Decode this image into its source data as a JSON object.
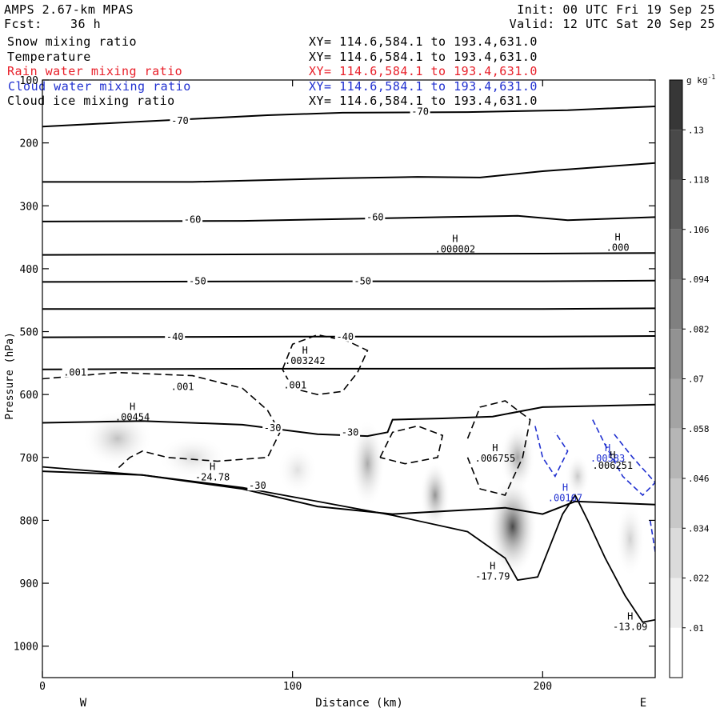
{
  "header": {
    "model": "AMPS 2.67-km MPAS",
    "init": "Init: 00 UTC Fri 19 Sep 25",
    "fcst_label": "Fcst:",
    "fcst_value": "36 h",
    "valid": "Valid: 12 UTC Sat 20 Sep 25"
  },
  "fields": [
    {
      "name": "Snow mixing ratio",
      "xy": "XY= 114.6,584.1 to 193.4,631.0",
      "color": "#000000"
    },
    {
      "name": "Temperature",
      "xy": "XY= 114.6,584.1 to 193.4,631.0",
      "color": "#000000"
    },
    {
      "name": "Rain water mixing ratio",
      "xy": "XY= 114.6,584.1 to 193.4,631.0",
      "color": "#e8202a"
    },
    {
      "name": "Cloud water mixing ratio",
      "xy": "XY= 114.6,584.1 to 193.4,631.0",
      "color": "#2030d0"
    },
    {
      "name": "Cloud ice mixing ratio",
      "xy": "XY= 114.6,584.1 to 193.4,631.0",
      "color": "#000000"
    }
  ],
  "chart_data": {
    "type": "cross-section",
    "xlabel": "Distance (km)",
    "ylabel": "Pressure (hPa)",
    "xlim": [
      0,
      245
    ],
    "ylim": [
      1050,
      100
    ],
    "xticks": [
      0,
      100,
      200
    ],
    "yticks": [
      100,
      200,
      300,
      400,
      500,
      600,
      700,
      800,
      900,
      1000
    ],
    "west_label": "W",
    "east_label": "E",
    "colorbar": {
      "unit": "g kg",
      "unit_exp": "-1",
      "levels": [
        ".01",
        ".022",
        ".034",
        ".046",
        ".058",
        ".07",
        ".082",
        ".094",
        ".106",
        ".118",
        ".13"
      ]
    },
    "temperature_contours": [
      {
        "label": "-70",
        "points": [
          [
            0,
            174
          ],
          [
            40,
            166
          ],
          [
            90,
            156
          ],
          [
            120,
            152
          ],
          [
            170,
            151
          ],
          [
            210,
            148
          ],
          [
            245,
            142
          ]
        ]
      },
      {
        "label": "",
        "points": [
          [
            0,
            262
          ],
          [
            60,
            262
          ],
          [
            120,
            256
          ],
          [
            150,
            254
          ],
          [
            175,
            255
          ],
          [
            200,
            245
          ],
          [
            245,
            232
          ]
        ]
      },
      {
        "label": "-60",
        "points": [
          [
            0,
            325
          ],
          [
            80,
            324
          ],
          [
            120,
            321
          ],
          [
            160,
            318
          ],
          [
            190,
            316
          ],
          [
            210,
            323
          ],
          [
            245,
            318
          ]
        ]
      },
      {
        "label": "",
        "points": [
          [
            0,
            378
          ],
          [
            100,
            377
          ],
          [
            200,
            376
          ],
          [
            245,
            375
          ]
        ]
      },
      {
        "label": "-50",
        "points": [
          [
            0,
            421
          ],
          [
            100,
            420
          ],
          [
            200,
            420
          ],
          [
            245,
            419
          ]
        ]
      },
      {
        "label": "",
        "points": [
          [
            0,
            464
          ],
          [
            100,
            464
          ],
          [
            200,
            464
          ],
          [
            245,
            463
          ]
        ]
      },
      {
        "label": "-40",
        "points": [
          [
            0,
            509
          ],
          [
            100,
            508
          ],
          [
            200,
            508
          ],
          [
            245,
            507
          ]
        ]
      },
      {
        "label": "",
        "points": [
          [
            0,
            560
          ],
          [
            100,
            559
          ],
          [
            200,
            559
          ],
          [
            245,
            558
          ]
        ]
      },
      {
        "label": "-30",
        "points": [
          [
            0,
            645
          ],
          [
            40,
            642
          ],
          [
            80,
            648
          ],
          [
            110,
            663
          ],
          [
            130,
            666
          ],
          [
            138,
            660
          ],
          [
            140,
            640
          ],
          [
            160,
            638
          ],
          [
            180,
            635
          ],
          [
            200,
            620
          ],
          [
            245,
            616
          ]
        ]
      },
      {
        "label": "",
        "points": [
          [
            0,
            722
          ],
          [
            40,
            728
          ],
          [
            80,
            750
          ],
          [
            110,
            778
          ],
          [
            140,
            790
          ],
          [
            185,
            780
          ],
          [
            200,
            790
          ],
          [
            213,
            770
          ],
          [
            245,
            775
          ]
        ]
      }
    ],
    "contour_labels": [
      {
        "text": "-70",
        "x": 55,
        "p": 165
      },
      {
        "text": "-70",
        "x": 151,
        "p": 150
      },
      {
        "text": "-60",
        "x": 60,
        "p": 322
      },
      {
        "text": "-60",
        "x": 133,
        "p": 318
      },
      {
        "text": "-50",
        "x": 62,
        "p": 420
      },
      {
        "text": "-50",
        "x": 128,
        "p": 420
      },
      {
        "text": "-40",
        "x": 53,
        "p": 508
      },
      {
        "text": "-40",
        "x": 121,
        "p": 508
      },
      {
        "text": "-30",
        "x": 92,
        "p": 653
      },
      {
        "text": "-30",
        "x": 123,
        "p": 660
      },
      {
        "text": "-30",
        "x": 86,
        "p": 745
      },
      {
        "text": ".001",
        "x": 13,
        "p": 565
      },
      {
        "text": ".001",
        "x": 56,
        "p": 588
      },
      {
        "text": ".001",
        "x": 101,
        "p": 585
      }
    ],
    "extrema": [
      {
        "mark": "H",
        "value": ".00454",
        "x": 36,
        "p": 635
      },
      {
        "mark": "H",
        "value": "-24.78",
        "x": 68,
        "p": 730
      },
      {
        "mark": "H",
        "value": ".003242",
        "x": 105,
        "p": 545
      },
      {
        "mark": "H",
        "value": ".000002",
        "x": 165,
        "p": 368
      },
      {
        "mark": "H",
        "value": ".000",
        "x": 230,
        "p": 365
      },
      {
        "mark": "H",
        "value": ".006755",
        "x": 181,
        "p": 700
      },
      {
        "mark": "H",
        "value": "-17.79",
        "x": 180,
        "p": 888
      },
      {
        "mark": "H",
        "value": ".00167",
        "x": 209,
        "p": 763
      },
      {
        "mark": "H",
        "value": ".00583",
        "x": 226,
        "p": 700
      },
      {
        "mark": "H",
        "value": ".006251",
        "x": 228,
        "p": 712
      },
      {
        "mark": "H",
        "value": "-13.09",
        "x": 235,
        "p": 968
      }
    ],
    "terrain": [
      [
        0,
        715
      ],
      [
        40,
        728
      ],
      [
        80,
        748
      ],
      [
        110,
        770
      ],
      [
        140,
        792
      ],
      [
        170,
        818
      ],
      [
        185,
        860
      ],
      [
        190,
        895
      ],
      [
        198,
        890
      ],
      [
        208,
        790
      ],
      [
        213,
        760
      ],
      [
        218,
        800
      ],
      [
        225,
        860
      ],
      [
        233,
        920
      ],
      [
        240,
        962
      ],
      [
        245,
        958
      ]
    ],
    "snow_contours": [
      [
        [
          0,
          575
        ],
        [
          30,
          565
        ],
        [
          60,
          570
        ],
        [
          80,
          590
        ],
        [
          90,
          625
        ],
        [
          95,
          660
        ],
        [
          90,
          700
        ],
        [
          70,
          706
        ],
        [
          50,
          700
        ],
        [
          40,
          690
        ],
        [
          35,
          700
        ],
        [
          30,
          718
        ]
      ],
      [
        [
          96,
          560
        ],
        [
          100,
          520
        ],
        [
          110,
          505
        ],
        [
          122,
          515
        ],
        [
          130,
          530
        ],
        [
          126,
          565
        ],
        [
          120,
          595
        ],
        [
          110,
          600
        ],
        [
          100,
          590
        ],
        [
          96,
          560
        ]
      ],
      [
        [
          135,
          700
        ],
        [
          140,
          660
        ],
        [
          150,
          650
        ],
        [
          160,
          665
        ],
        [
          158,
          700
        ],
        [
          145,
          710
        ],
        [
          135,
          700
        ]
      ],
      [
        [
          170,
          670
        ],
        [
          175,
          620
        ],
        [
          185,
          610
        ],
        [
          195,
          640
        ],
        [
          192,
          700
        ],
        [
          185,
          760
        ],
        [
          175,
          750
        ],
        [
          170,
          700
        ]
      ]
    ],
    "cloud_water_contours": [
      [
        [
          197,
          650
        ],
        [
          200,
          700
        ],
        [
          205,
          730
        ],
        [
          210,
          690
        ],
        [
          205,
          660
        ]
      ],
      [
        [
          220,
          640
        ],
        [
          225,
          680
        ],
        [
          232,
          730
        ],
        [
          240,
          760
        ],
        [
          245,
          740
        ],
        [
          236,
          700
        ],
        [
          228,
          660
        ]
      ],
      [
        [
          243,
          800
        ],
        [
          245,
          850
        ]
      ]
    ],
    "snow_shading": [
      {
        "x": 30,
        "p": 670,
        "rx": 14,
        "rp": 45,
        "v": 0.04
      },
      {
        "x": 60,
        "p": 700,
        "rx": 14,
        "rp": 35,
        "v": 0.025
      },
      {
        "x": 102,
        "p": 720,
        "rx": 8,
        "rp": 40,
        "v": 0.02
      },
      {
        "x": 130,
        "p": 710,
        "rx": 7,
        "rp": 70,
        "v": 0.055
      },
      {
        "x": 157,
        "p": 760,
        "rx": 6,
        "rp": 55,
        "v": 0.07
      },
      {
        "x": 188,
        "p": 810,
        "rx": 10,
        "rp": 80,
        "v": 0.118
      },
      {
        "x": 190,
        "p": 700,
        "rx": 7,
        "rp": 55,
        "v": 0.06
      },
      {
        "x": 214,
        "p": 730,
        "rx": 5,
        "rp": 35,
        "v": 0.035
      },
      {
        "x": 235,
        "p": 830,
        "rx": 6,
        "rp": 60,
        "v": 0.03
      }
    ]
  }
}
